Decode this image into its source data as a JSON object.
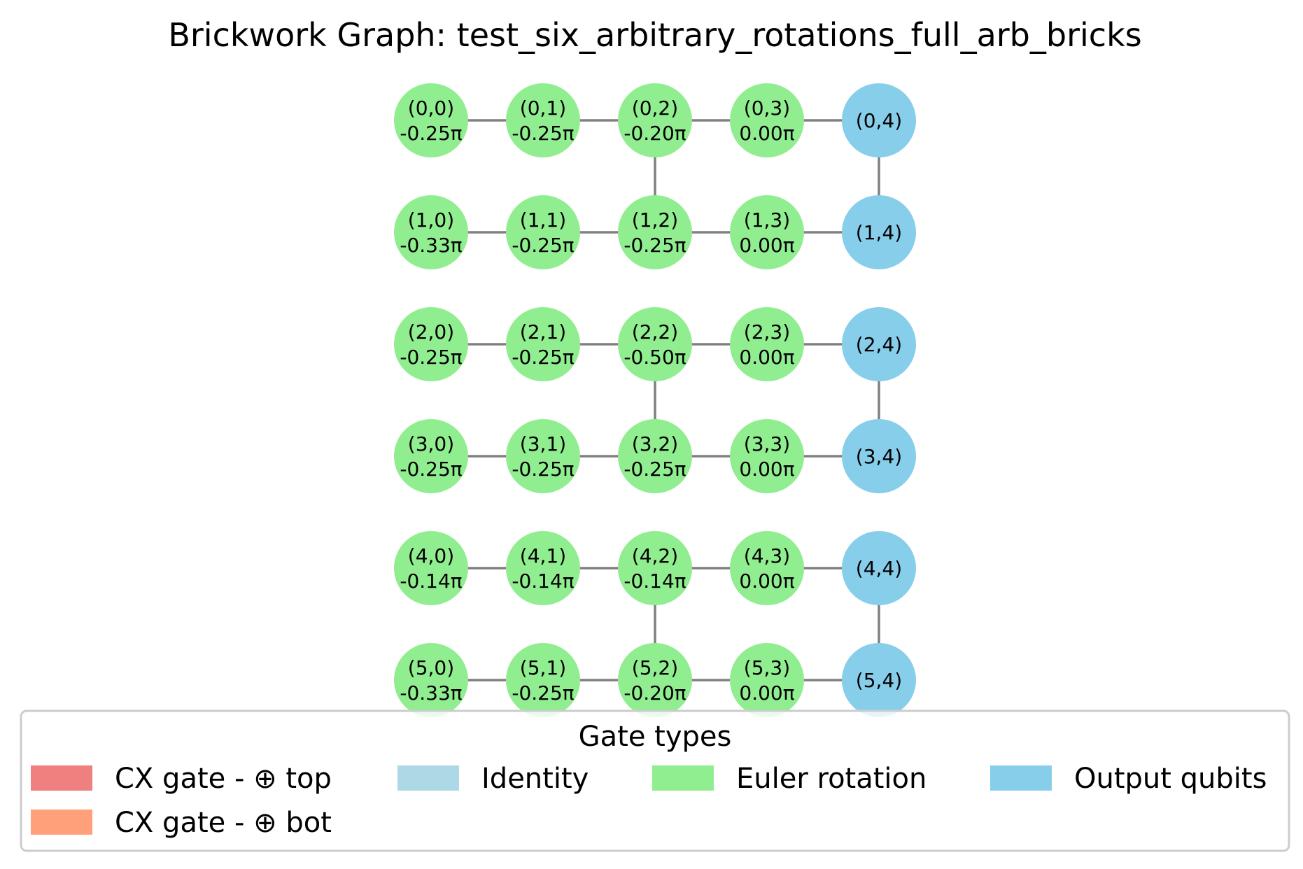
{
  "title": "Brickwork Graph: test_six_arbitrary_rotations_full_arb_bricks",
  "colors": {
    "euler": "#90ee90",
    "output": "#87ceeb",
    "identity": "#add8e6",
    "cx_top": "#f08080",
    "cx_bot": "#ffa07a",
    "edge": "#808080"
  },
  "nodes": [
    {
      "id": "(0,0)",
      "angle": "-0.25π",
      "type": "euler"
    },
    {
      "id": "(0,1)",
      "angle": "-0.25π",
      "type": "euler"
    },
    {
      "id": "(0,2)",
      "angle": "-0.20π",
      "type": "euler"
    },
    {
      "id": "(0,3)",
      "angle": "0.00π",
      "type": "euler"
    },
    {
      "id": "(0,4)",
      "angle": "",
      "type": "output"
    },
    {
      "id": "(1,0)",
      "angle": "-0.33π",
      "type": "euler"
    },
    {
      "id": "(1,1)",
      "angle": "-0.25π",
      "type": "euler"
    },
    {
      "id": "(1,2)",
      "angle": "-0.25π",
      "type": "euler"
    },
    {
      "id": "(1,3)",
      "angle": "0.00π",
      "type": "euler"
    },
    {
      "id": "(1,4)",
      "angle": "",
      "type": "output"
    },
    {
      "id": "(2,0)",
      "angle": "-0.25π",
      "type": "euler"
    },
    {
      "id": "(2,1)",
      "angle": "-0.25π",
      "type": "euler"
    },
    {
      "id": "(2,2)",
      "angle": "-0.50π",
      "type": "euler"
    },
    {
      "id": "(2,3)",
      "angle": "0.00π",
      "type": "euler"
    },
    {
      "id": "(2,4)",
      "angle": "",
      "type": "output"
    },
    {
      "id": "(3,0)",
      "angle": "-0.25π",
      "type": "euler"
    },
    {
      "id": "(3,1)",
      "angle": "-0.25π",
      "type": "euler"
    },
    {
      "id": "(3,2)",
      "angle": "-0.25π",
      "type": "euler"
    },
    {
      "id": "(3,3)",
      "angle": "0.00π",
      "type": "euler"
    },
    {
      "id": "(3,4)",
      "angle": "",
      "type": "output"
    },
    {
      "id": "(4,0)",
      "angle": "-0.14π",
      "type": "euler"
    },
    {
      "id": "(4,1)",
      "angle": "-0.14π",
      "type": "euler"
    },
    {
      "id": "(4,2)",
      "angle": "-0.14π",
      "type": "euler"
    },
    {
      "id": "(4,3)",
      "angle": "0.00π",
      "type": "euler"
    },
    {
      "id": "(4,4)",
      "angle": "",
      "type": "output"
    },
    {
      "id": "(5,0)",
      "angle": "-0.33π",
      "type": "euler"
    },
    {
      "id": "(5,1)",
      "angle": "-0.25π",
      "type": "euler"
    },
    {
      "id": "(5,2)",
      "angle": "-0.20π",
      "type": "euler"
    },
    {
      "id": "(5,3)",
      "angle": "0.00π",
      "type": "euler"
    },
    {
      "id": "(5,4)",
      "angle": "",
      "type": "output"
    }
  ],
  "vertical_edges": [
    [
      "(0,2)",
      "(1,2)"
    ],
    [
      "(0,4)",
      "(1,4)"
    ],
    [
      "(2,2)",
      "(3,2)"
    ],
    [
      "(2,4)",
      "(3,4)"
    ],
    [
      "(4,2)",
      "(5,2)"
    ],
    [
      "(4,4)",
      "(5,4)"
    ]
  ],
  "legend": {
    "title": "Gate types",
    "items": [
      {
        "label": "CX gate - ⊕ top",
        "color_key": "cx_top"
      },
      {
        "label": "CX gate - ⊕ bot",
        "color_key": "cx_bot"
      },
      {
        "label": "Identity",
        "color_key": "identity"
      },
      {
        "label": "Euler rotation",
        "color_key": "euler"
      },
      {
        "label": "Output qubits",
        "color_key": "output"
      }
    ]
  }
}
